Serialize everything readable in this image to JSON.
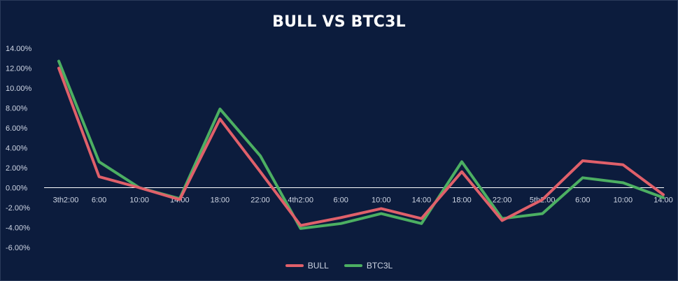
{
  "chart_data": {
    "type": "line",
    "title": "BULL VS BTC3L",
    "categories": [
      "3th2:00",
      "6:00",
      "10:00",
      "14:00",
      "18:00",
      "22:00",
      "4th2:00",
      "6:00",
      "10:00",
      "14:00",
      "18:00",
      "22:00",
      "5th2:00",
      "6:00",
      "10:00",
      "14:00"
    ],
    "y_tick_labels": [
      "14.00%",
      "12.00%",
      "10.00%",
      "8.00%",
      "6.00%",
      "4.00%",
      "2.00%",
      "0.00%",
      "-2.00%",
      "-4.00%",
      "-6.00%"
    ],
    "ylim": [
      -6,
      14
    ],
    "grid": false,
    "legend_position": "bottom",
    "series": [
      {
        "name": "BULL",
        "color": "#e0606a",
        "values": [
          12.0,
          1.1,
          0.0,
          -1.2,
          6.9,
          1.6,
          -3.8,
          -3.0,
          -2.1,
          -3.1,
          1.6,
          -3.3,
          -1.2,
          2.7,
          2.3,
          -0.7
        ]
      },
      {
        "name": "BTC3L",
        "color": "#4caf62",
        "values": [
          12.7,
          2.6,
          0.0,
          -1.1,
          7.9,
          3.2,
          -4.1,
          -3.6,
          -2.6,
          -3.6,
          2.6,
          -3.1,
          -2.6,
          1.0,
          0.5,
          -1.0
        ]
      }
    ]
  }
}
